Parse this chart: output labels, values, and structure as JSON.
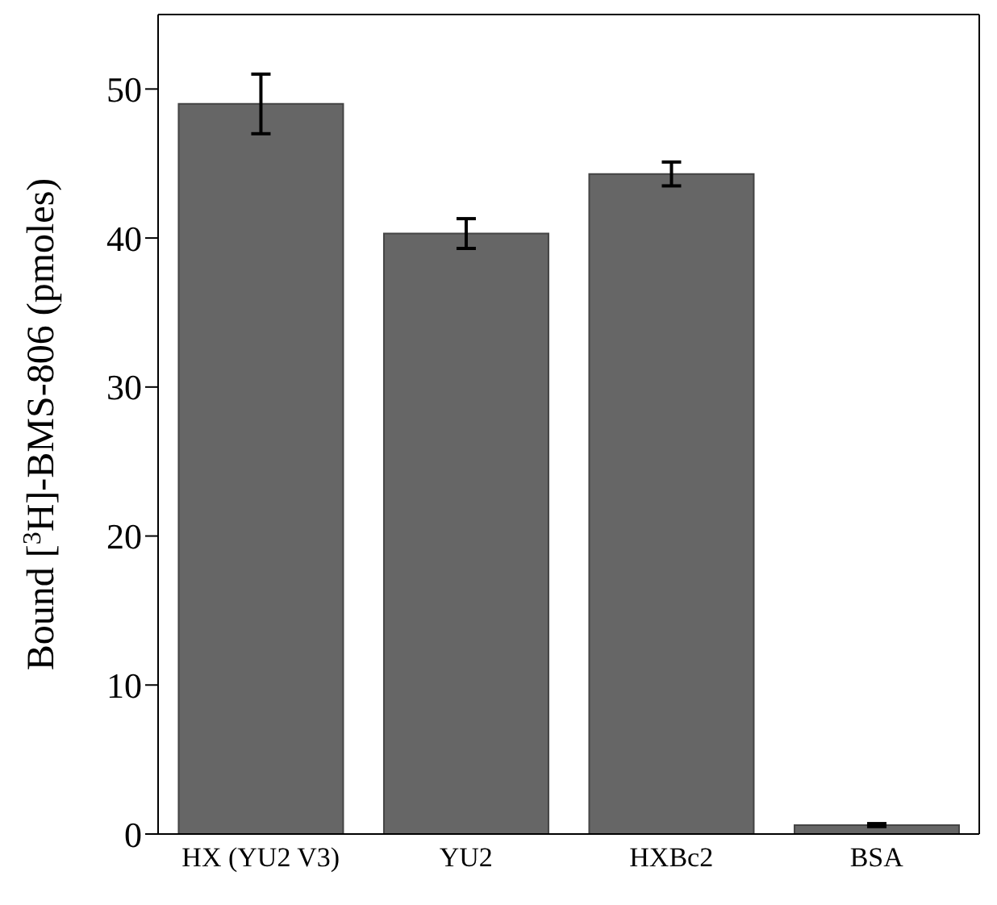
{
  "chart_data": {
    "type": "bar",
    "ylabel": "Bound [$^{3}$H]-BMS-806 (pmoles)",
    "categories": [
      "HX (YU2 V3)",
      "YU2",
      "HXBc2",
      "BSA"
    ],
    "values": [
      49,
      40.3,
      44.3,
      0.6
    ],
    "errors": [
      2,
      1,
      0.8,
      0.1
    ],
    "color": "#666666",
    "ylim": [
      0,
      55
    ],
    "yticks": [
      0,
      10,
      20,
      30,
      40,
      50
    ],
    "grid": false
  }
}
